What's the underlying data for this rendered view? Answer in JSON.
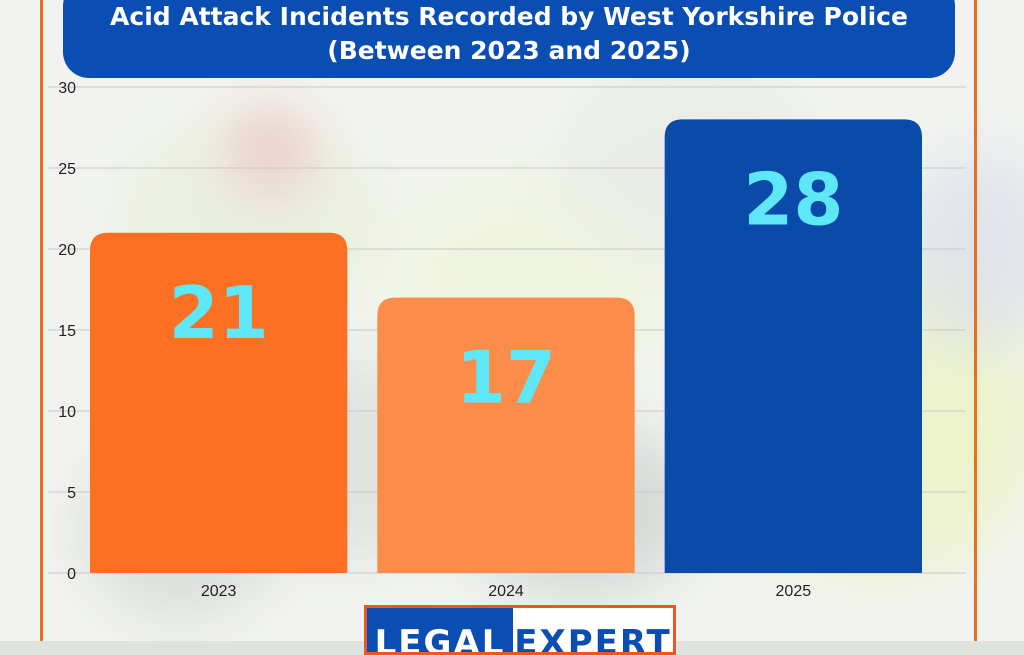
{
  "colors": {
    "accent_orange": "#f26b1d",
    "bar_2023": "#fb7023",
    "bar_2024": "#fb8c4a",
    "bar_2025": "#0a4aa8",
    "title_bg": "#0a4db3",
    "value_label": "#5ee7f7"
  },
  "chart_data": {
    "type": "bar",
    "title": "Acid Attack Incidents Recorded by West Yorkshire Police",
    "subtitle": "(Between 2023 and 2025)",
    "categories": [
      "2023",
      "2024",
      "2025"
    ],
    "values": [
      21,
      17,
      28
    ],
    "y_ticks": [
      "0",
      "5",
      "10",
      "15",
      "20",
      "25",
      "30"
    ],
    "ylim": [
      0,
      30
    ],
    "grid": true,
    "legend": "none",
    "data_labels": [
      "21",
      "17",
      "28"
    ]
  },
  "logo": {
    "left_text": "LEGAL",
    "right_text": "EXPERT"
  }
}
